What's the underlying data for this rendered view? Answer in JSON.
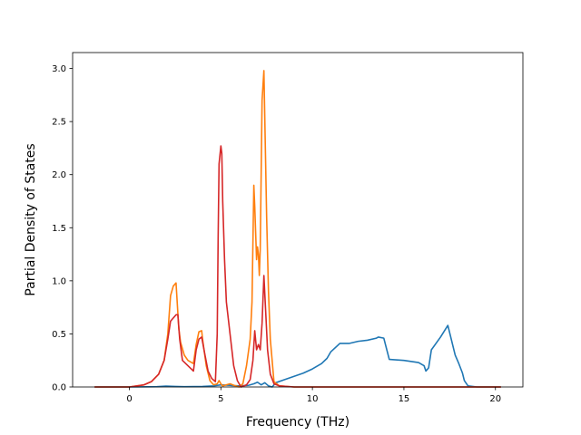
{
  "chart_data": {
    "type": "line",
    "title": "",
    "xlabel": "Frequency (THz)",
    "ylabel": "Partial Density of States",
    "xlim": [
      -3.1,
      21.5
    ],
    "ylim": [
      0,
      3.15
    ],
    "xticks": [
      0,
      5,
      10,
      15,
      20
    ],
    "xtick_labels": [
      "0",
      "5",
      "10",
      "15",
      "20"
    ],
    "yticks": [
      0,
      0.5,
      1.0,
      1.5,
      2.0,
      2.5,
      3.0
    ],
    "ytick_labels": [
      "0.0",
      "0.5",
      "1.0",
      "1.5",
      "2.0",
      "2.5",
      "3.0"
    ],
    "grid": false,
    "legend": "none",
    "series": [
      {
        "color": "#1f77b4",
        "x": [
          -1.9,
          0,
          1.5,
          2.0,
          2.5,
          3.0,
          4.0,
          4.6,
          5.0,
          5.5,
          6.0,
          6.5,
          6.8,
          7.0,
          7.2,
          7.4,
          7.6,
          7.8,
          8.0,
          8.5,
          9.0,
          9.5,
          10.0,
          10.5,
          10.8,
          11.0,
          11.5,
          12.0,
          12.5,
          13.0,
          13.5,
          13.6,
          13.9,
          14.2,
          15.0,
          15.8,
          16.1,
          16.2,
          16.35,
          16.5,
          17.0,
          17.4,
          17.6,
          17.8,
          18.0,
          18.2,
          18.3,
          18.5,
          19.0,
          20.3
        ],
        "y": [
          0,
          0,
          0.003,
          0.008,
          0.005,
          0.003,
          0.005,
          0.01,
          0.02,
          0.015,
          0.01,
          0.015,
          0.03,
          0.045,
          0.02,
          0.04,
          0.01,
          0.0,
          0.04,
          0.07,
          0.1,
          0.13,
          0.17,
          0.22,
          0.27,
          0.33,
          0.41,
          0.41,
          0.43,
          0.44,
          0.46,
          0.47,
          0.46,
          0.26,
          0.25,
          0.23,
          0.2,
          0.15,
          0.18,
          0.35,
          0.47,
          0.58,
          0.44,
          0.3,
          0.22,
          0.13,
          0.06,
          0.01,
          0,
          0
        ]
      },
      {
        "color": "#ff7f0e",
        "x": [
          -1.9,
          0,
          0.8,
          1.2,
          1.6,
          1.9,
          2.1,
          2.25,
          2.4,
          2.55,
          2.7,
          2.8,
          3.0,
          3.2,
          3.5,
          3.65,
          3.8,
          3.95,
          4.0,
          4.2,
          4.4,
          4.6,
          4.8,
          4.9,
          5.0,
          5.1,
          5.3,
          5.5,
          5.8,
          6.0,
          6.2,
          6.4,
          6.6,
          6.7,
          6.8,
          6.85,
          6.95,
          7.0,
          7.05,
          7.1,
          7.15,
          7.25,
          7.35,
          7.5,
          7.6,
          7.7,
          7.9,
          8.2,
          9.0,
          20.3
        ],
        "y": [
          0,
          0,
          0.02,
          0.05,
          0.12,
          0.25,
          0.5,
          0.86,
          0.95,
          0.98,
          0.55,
          0.42,
          0.3,
          0.25,
          0.22,
          0.4,
          0.52,
          0.53,
          0.45,
          0.2,
          0.06,
          0.02,
          0.03,
          0.06,
          0.03,
          0.01,
          0.02,
          0.03,
          0.01,
          0.0,
          0.03,
          0.2,
          0.45,
          0.8,
          1.9,
          1.7,
          1.2,
          1.32,
          1.25,
          1.05,
          1.3,
          2.7,
          2.98,
          1.6,
          0.9,
          0.45,
          0.05,
          0.01,
          0,
          0
        ]
      },
      {
        "color": "#d62728",
        "x": [
          -1.9,
          0,
          0.8,
          1.2,
          1.6,
          1.9,
          2.1,
          2.25,
          2.4,
          2.55,
          2.65,
          2.75,
          2.9,
          3.2,
          3.5,
          3.65,
          3.8,
          3.95,
          4.1,
          4.3,
          4.5,
          4.7,
          4.8,
          4.85,
          4.9,
          5.0,
          5.05,
          5.1,
          5.2,
          5.3,
          5.5,
          5.7,
          5.9,
          6.1,
          6.4,
          6.6,
          6.75,
          6.85,
          6.95,
          7.05,
          7.15,
          7.25,
          7.35,
          7.45,
          7.55,
          7.7,
          7.9,
          8.2,
          9.0,
          20.3
        ],
        "y": [
          0,
          0,
          0.02,
          0.05,
          0.12,
          0.25,
          0.45,
          0.62,
          0.65,
          0.68,
          0.68,
          0.45,
          0.25,
          0.2,
          0.15,
          0.35,
          0.45,
          0.47,
          0.33,
          0.15,
          0.08,
          0.05,
          0.5,
          1.4,
          2.1,
          2.27,
          2.2,
          1.75,
          1.2,
          0.8,
          0.5,
          0.2,
          0.06,
          0.0,
          0.02,
          0.07,
          0.25,
          0.53,
          0.35,
          0.4,
          0.35,
          0.6,
          1.05,
          0.7,
          0.35,
          0.12,
          0.03,
          0.01,
          0,
          0
        ]
      }
    ]
  }
}
